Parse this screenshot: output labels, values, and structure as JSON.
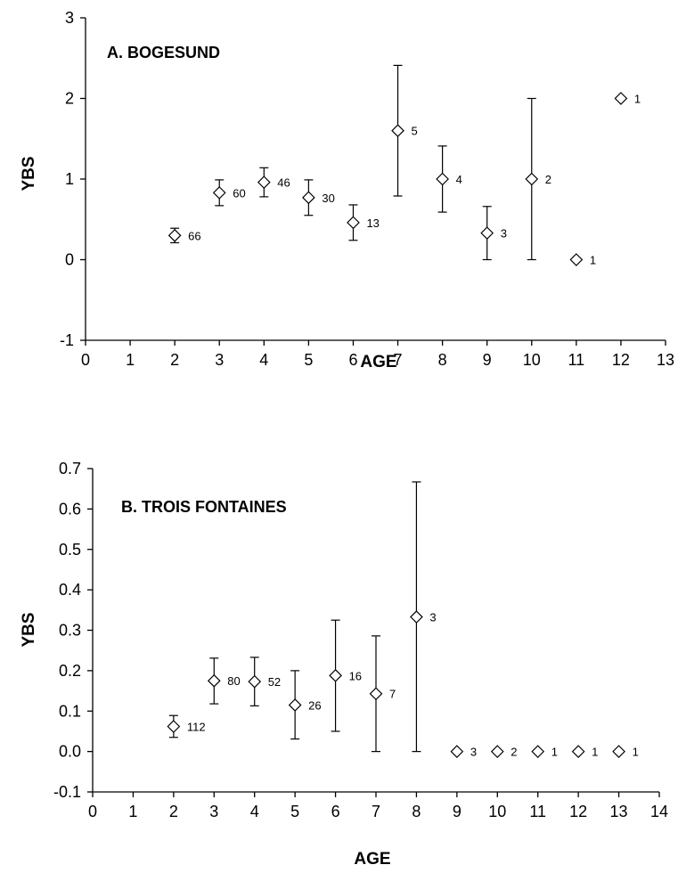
{
  "chart_data": [
    {
      "type": "scatter",
      "title": "A.   BOGESUND",
      "xlabel": "AGE",
      "ylabel": "YBS",
      "xlim": [
        0,
        13
      ],
      "ylim": [
        -1,
        3
      ],
      "x_ticks": [
        "0",
        "1",
        "2",
        "3",
        "4",
        "5",
        "6",
        "7",
        "8",
        "9",
        "10",
        "11",
        "12",
        "13"
      ],
      "y_ticks": [
        "-1",
        "0",
        "1",
        "2",
        "3"
      ],
      "series": [
        {
          "marker": "open-diamond",
          "points": [
            {
              "x": 2,
              "y": 0.3,
              "lo": 0.21,
              "hi": 0.39,
              "n": "66"
            },
            {
              "x": 3,
              "y": 0.83,
              "lo": 0.67,
              "hi": 0.99,
              "n": "60"
            },
            {
              "x": 4,
              "y": 0.96,
              "lo": 0.78,
              "hi": 1.14,
              "n": "46"
            },
            {
              "x": 5,
              "y": 0.77,
              "lo": 0.55,
              "hi": 0.99,
              "n": "30"
            },
            {
              "x": 6,
              "y": 0.46,
              "lo": 0.24,
              "hi": 0.68,
              "n": "13"
            },
            {
              "x": 7,
              "y": 1.6,
              "lo": 0.79,
              "hi": 2.41,
              "n": "5"
            },
            {
              "x": 8,
              "y": 1.0,
              "lo": 0.59,
              "hi": 1.41,
              "n": "4"
            },
            {
              "x": 9,
              "y": 0.33,
              "lo": 0.0,
              "hi": 0.66,
              "n": "3"
            },
            {
              "x": 10,
              "y": 1.0,
              "lo": 0.0,
              "hi": 2.0,
              "n": "2"
            },
            {
              "x": 11,
              "y": 0.0,
              "lo": null,
              "hi": null,
              "n": "1"
            },
            {
              "x": 12,
              "y": 2.0,
              "lo": null,
              "hi": null,
              "n": "1"
            }
          ]
        }
      ]
    },
    {
      "type": "scatter",
      "title": "B.   TROIS FONTAINES",
      "xlabel": "AGE",
      "ylabel": "YBS",
      "xlim": [
        0,
        14
      ],
      "ylim": [
        -0.1,
        0.7
      ],
      "x_ticks": [
        "0",
        "1",
        "2",
        "3",
        "4",
        "5",
        "6",
        "7",
        "8",
        "9",
        "10",
        "11",
        "12",
        "13",
        "14"
      ],
      "y_ticks": [
        "-0.1",
        "0.0",
        "0.1",
        "0.2",
        "0.3",
        "0.4",
        "0.5",
        "0.6",
        "0.7"
      ],
      "series": [
        {
          "marker": "open-diamond",
          "points": [
            {
              "x": 2,
              "y": 0.062,
              "lo": 0.035,
              "hi": 0.089,
              "n": "112"
            },
            {
              "x": 3,
              "y": 0.175,
              "lo": 0.118,
              "hi": 0.231,
              "n": "80"
            },
            {
              "x": 4,
              "y": 0.173,
              "lo": 0.113,
              "hi": 0.233,
              "n": "52"
            },
            {
              "x": 5,
              "y": 0.115,
              "lo": 0.031,
              "hi": 0.2,
              "n": "26"
            },
            {
              "x": 6,
              "y": 0.188,
              "lo": 0.05,
              "hi": 0.325,
              "n": "16"
            },
            {
              "x": 7,
              "y": 0.143,
              "lo": 0.0,
              "hi": 0.286,
              "n": "7"
            },
            {
              "x": 8,
              "y": 0.333,
              "lo": 0.0,
              "hi": 0.667,
              "n": "3"
            },
            {
              "x": 9,
              "y": 0.0,
              "lo": null,
              "hi": null,
              "n": "3"
            },
            {
              "x": 10,
              "y": 0.0,
              "lo": null,
              "hi": null,
              "n": "2"
            },
            {
              "x": 11,
              "y": 0.0,
              "lo": null,
              "hi": null,
              "n": "1"
            },
            {
              "x": 12,
              "y": 0.0,
              "lo": null,
              "hi": null,
              "n": "1"
            },
            {
              "x": 13,
              "y": 0.0,
              "lo": null,
              "hi": null,
              "n": "1"
            }
          ]
        }
      ]
    }
  ]
}
